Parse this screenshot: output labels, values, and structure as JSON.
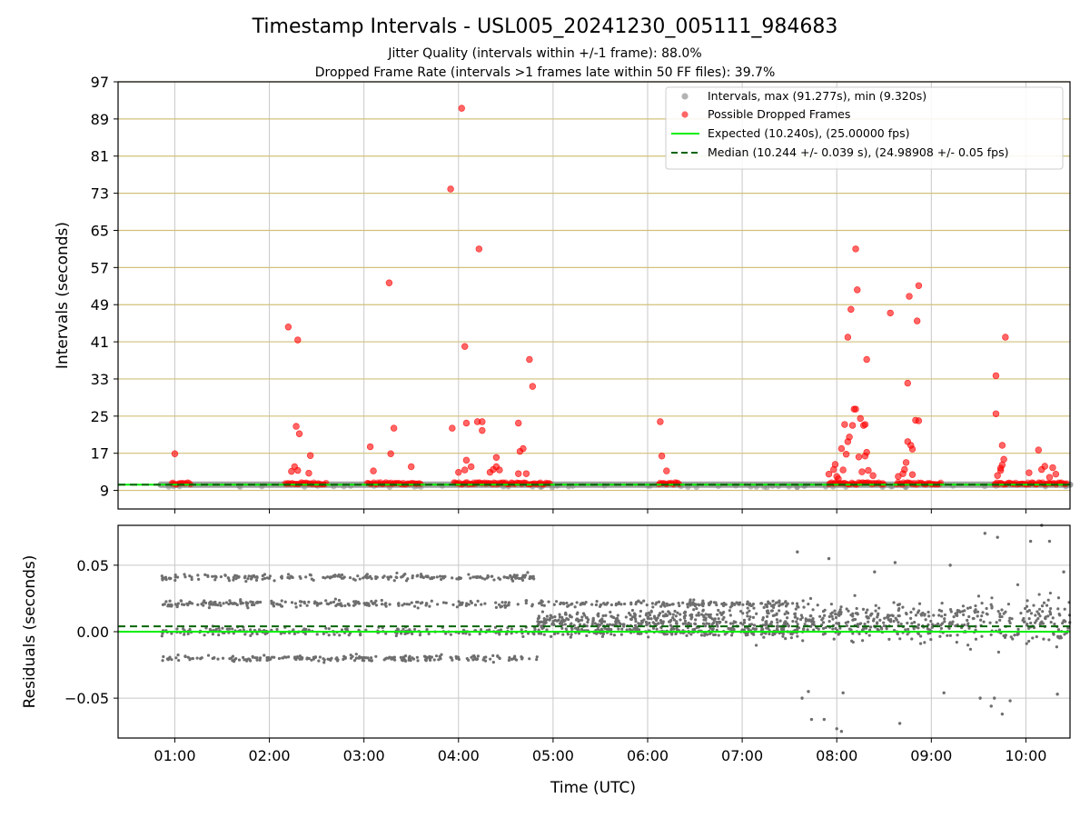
{
  "figure": {
    "title": "Timestamp Intervals - USL005_20241230_005111_984683",
    "subtitle1": "Jitter Quality (intervals within +/-1 frame): 88.0%",
    "subtitle2": "Dropped Frame Rate (intervals >1 frames late within 50 FF files): 39.7%"
  },
  "chart_data": [
    {
      "type": "scatter",
      "panel": "top",
      "ylabel": "Intervals (seconds)",
      "xlabel": "",
      "x_axis": "time (UTC)",
      "xlim": [
        "00:24",
        "10:28"
      ],
      "ylim": [
        5,
        97
      ],
      "yticks": [
        9,
        17,
        25,
        33,
        41,
        49,
        57,
        65,
        73,
        81,
        89,
        97
      ],
      "grid": "horizontal goldenrod + vertical grey",
      "legend_position": "top-right",
      "colors": {
        "intervals": "#808080",
        "dropped": "#ff0000",
        "expected": "#00ee00",
        "median": "#006400",
        "hgrid": "#d2c07a",
        "vgrid": "#c8c8c8"
      },
      "legend": [
        "Intervals, max (91.277s), min (9.320s)",
        "Possible Dropped Frames",
        "Expected (10.240s), (25.00000 fps)",
        "Median (10.244 +/- 0.039 s), (24.98908 +/- 0.05 fps)"
      ],
      "intervals_band": {
        "x_start": "00:51",
        "x_end": "10:28",
        "y": 10.24
      },
      "expected_line": 10.24,
      "median_line": 10.244,
      "dropped_frames": [
        {
          "x": "01:00",
          "y": 16.9
        },
        {
          "x": "02:12",
          "y": 44.2
        },
        {
          "x": "02:18",
          "y": 41.4
        },
        {
          "x": "02:17",
          "y": 22.8
        },
        {
          "x": "02:19",
          "y": 21.2
        },
        {
          "x": "02:16",
          "y": 14.1
        },
        {
          "x": "02:14",
          "y": 13.1
        },
        {
          "x": "02:18",
          "y": 13.3
        },
        {
          "x": "02:26",
          "y": 16.5
        },
        {
          "x": "02:25",
          "y": 12.7
        },
        {
          "x": "03:04",
          "y": 18.4
        },
        {
          "x": "03:06",
          "y": 13.2
        },
        {
          "x": "03:16",
          "y": 53.7
        },
        {
          "x": "03:17",
          "y": 16.9
        },
        {
          "x": "03:19",
          "y": 22.4
        },
        {
          "x": "03:30",
          "y": 14.1
        },
        {
          "x": "03:55",
          "y": 73.9
        },
        {
          "x": "03:56",
          "y": 22.4
        },
        {
          "x": "04:02",
          "y": 91.3
        },
        {
          "x": "04:04",
          "y": 40.0
        },
        {
          "x": "04:05",
          "y": 23.5
        },
        {
          "x": "04:05",
          "y": 15.5
        },
        {
          "x": "04:04",
          "y": 13.4
        },
        {
          "x": "04:00",
          "y": 12.9
        },
        {
          "x": "04:08",
          "y": 14.1
        },
        {
          "x": "04:13",
          "y": 61.0
        },
        {
          "x": "04:12",
          "y": 23.8
        },
        {
          "x": "04:15",
          "y": 23.8
        },
        {
          "x": "04:15",
          "y": 21.9
        },
        {
          "x": "04:20",
          "y": 12.9
        },
        {
          "x": "04:22",
          "y": 13.5
        },
        {
          "x": "04:24",
          "y": 16.1
        },
        {
          "x": "04:24",
          "y": 14.1
        },
        {
          "x": "04:26",
          "y": 13.4
        },
        {
          "x": "04:38",
          "y": 23.5
        },
        {
          "x": "04:39",
          "y": 17.4
        },
        {
          "x": "04:41",
          "y": 18.0
        },
        {
          "x": "04:38",
          "y": 12.6
        },
        {
          "x": "04:43",
          "y": 12.6
        },
        {
          "x": "04:45",
          "y": 37.2
        },
        {
          "x": "04:47",
          "y": 31.4
        },
        {
          "x": "06:08",
          "y": 23.8
        },
        {
          "x": "06:09",
          "y": 16.4
        },
        {
          "x": "06:12",
          "y": 13.2
        },
        {
          "x": "07:55",
          "y": 12.5
        },
        {
          "x": "07:58",
          "y": 13.5
        },
        {
          "x": "07:59",
          "y": 14.6
        },
        {
          "x": "08:00",
          "y": 12.0
        },
        {
          "x": "08:01",
          "y": 11.5
        },
        {
          "x": "08:03",
          "y": 18.0
        },
        {
          "x": "08:04",
          "y": 13.4
        },
        {
          "x": "08:05",
          "y": 23.2
        },
        {
          "x": "08:06",
          "y": 16.8
        },
        {
          "x": "08:07",
          "y": 19.5
        },
        {
          "x": "08:07",
          "y": 42.0
        },
        {
          "x": "08:08",
          "y": 20.5
        },
        {
          "x": "08:09",
          "y": 48.0
        },
        {
          "x": "08:10",
          "y": 23.0
        },
        {
          "x": "08:11",
          "y": 26.5
        },
        {
          "x": "08:12",
          "y": 61.0
        },
        {
          "x": "08:12",
          "y": 26.5
        },
        {
          "x": "08:13",
          "y": 52.2
        },
        {
          "x": "08:14",
          "y": 16.2
        },
        {
          "x": "08:15",
          "y": 24.5
        },
        {
          "x": "08:16",
          "y": 13.0
        },
        {
          "x": "08:17",
          "y": 23.0
        },
        {
          "x": "08:18",
          "y": 23.2
        },
        {
          "x": "08:19",
          "y": 17.2
        },
        {
          "x": "08:19",
          "y": 37.2
        },
        {
          "x": "08:18",
          "y": 16.4
        },
        {
          "x": "08:20",
          "y": 13.3
        },
        {
          "x": "08:23",
          "y": 12.2
        },
        {
          "x": "08:34",
          "y": 47.2
        },
        {
          "x": "08:39",
          "y": 12.0
        },
        {
          "x": "08:42",
          "y": 12.6
        },
        {
          "x": "08:43",
          "y": 13.5
        },
        {
          "x": "08:44",
          "y": 15.0
        },
        {
          "x": "08:45",
          "y": 32.1
        },
        {
          "x": "08:45",
          "y": 19.5
        },
        {
          "x": "08:46",
          "y": 50.8
        },
        {
          "x": "08:47",
          "y": 18.7
        },
        {
          "x": "08:48",
          "y": 17.9
        },
        {
          "x": "08:48",
          "y": 12.4
        },
        {
          "x": "08:50",
          "y": 24.1
        },
        {
          "x": "08:51",
          "y": 45.5
        },
        {
          "x": "08:52",
          "y": 24.0
        },
        {
          "x": "08:52",
          "y": 53.1
        },
        {
          "x": "09:41",
          "y": 33.7
        },
        {
          "x": "09:41",
          "y": 25.5
        },
        {
          "x": "09:42",
          "y": 12.2
        },
        {
          "x": "09:44",
          "y": 13.3
        },
        {
          "x": "09:45",
          "y": 18.7
        },
        {
          "x": "09:45",
          "y": 14.5
        },
        {
          "x": "09:46",
          "y": 15.7
        },
        {
          "x": "09:47",
          "y": 42.0
        },
        {
          "x": "09:44",
          "y": 13.8
        },
        {
          "x": "10:02",
          "y": 12.8
        },
        {
          "x": "10:08",
          "y": 17.7
        },
        {
          "x": "10:10",
          "y": 13.5
        },
        {
          "x": "10:12",
          "y": 14.2
        },
        {
          "x": "10:15",
          "y": 11.8
        },
        {
          "x": "10:17",
          "y": 13.9
        },
        {
          "x": "10:19",
          "y": 12.5
        }
      ],
      "dropped_clusters": [
        {
          "x_start": "00:58",
          "x_end": "01:10",
          "y": 10.5
        },
        {
          "x_start": "02:10",
          "x_end": "02:36",
          "y": 10.5
        },
        {
          "x_start": "03:02",
          "x_end": "03:36",
          "y": 10.5
        },
        {
          "x_start": "03:57",
          "x_end": "04:58",
          "y": 10.5
        },
        {
          "x_start": "06:07",
          "x_end": "06:20",
          "y": 10.5
        },
        {
          "x_start": "07:55",
          "x_end": "08:30",
          "y": 10.5
        },
        {
          "x_start": "08:38",
          "x_end": "09:06",
          "y": 10.5
        },
        {
          "x_start": "09:40",
          "x_end": "10:26",
          "y": 10.5
        }
      ]
    },
    {
      "type": "scatter",
      "panel": "bottom",
      "ylabel": "Residuals (seconds)",
      "xlabel": "Time (UTC)",
      "xlim": [
        "00:24",
        "10:28"
      ],
      "ylim": [
        -0.08,
        0.08
      ],
      "yticks": [
        -0.05,
        0.0,
        0.05
      ],
      "ytick_labels": [
        "−0.05",
        "0.00",
        "0.05"
      ],
      "xticks": [
        "01:00",
        "02:00",
        "03:00",
        "04:00",
        "05:00",
        "06:00",
        "07:00",
        "08:00",
        "09:00",
        "10:00"
      ],
      "grid": "on",
      "expected_line": 0.0,
      "median_line": 0.004,
      "residual_bands": [
        {
          "level": 0.021,
          "x_start": "00:51",
          "x_end": "07:40",
          "spread": 0.003
        },
        {
          "level": 0.0,
          "x_start": "00:51",
          "x_end": "07:40",
          "spread": 0.004
        },
        {
          "level": -0.02,
          "x_start": "00:51",
          "x_end": "04:50",
          "spread": 0.003
        },
        {
          "level": 0.041,
          "x_start": "00:51",
          "x_end": "04:50",
          "spread": 0.003
        }
      ],
      "residual_scatter_window": {
        "x_start": "04:50",
        "x_end": "10:28",
        "spread": 0.03
      },
      "residual_outliers": [
        {
          "x": "07:35",
          "y": 0.06
        },
        {
          "x": "07:38",
          "y": -0.05
        },
        {
          "x": "07:42",
          "y": -0.045
        },
        {
          "x": "07:44",
          "y": -0.066
        },
        {
          "x": "07:52",
          "y": -0.066
        },
        {
          "x": "07:55",
          "y": 0.055
        },
        {
          "x": "08:00",
          "y": -0.073
        },
        {
          "x": "08:03",
          "y": -0.075
        },
        {
          "x": "08:04",
          "y": -0.046
        },
        {
          "x": "08:24",
          "y": 0.045
        },
        {
          "x": "08:40",
          "y": -0.069
        },
        {
          "x": "08:37",
          "y": 0.052
        },
        {
          "x": "09:08",
          "y": -0.046
        },
        {
          "x": "09:12",
          "y": 0.05
        },
        {
          "x": "09:31",
          "y": -0.05
        },
        {
          "x": "09:34",
          "y": 0.074
        },
        {
          "x": "09:38",
          "y": -0.056
        },
        {
          "x": "09:40",
          "y": -0.05
        },
        {
          "x": "09:42",
          "y": 0.071
        },
        {
          "x": "09:45",
          "y": -0.062
        },
        {
          "x": "09:50",
          "y": -0.052
        },
        {
          "x": "10:03",
          "y": 0.068
        },
        {
          "x": "10:10",
          "y": 0.08
        },
        {
          "x": "10:15",
          "y": 0.068
        },
        {
          "x": "10:20",
          "y": -0.047
        },
        {
          "x": "10:24",
          "y": 0.045
        }
      ]
    }
  ]
}
